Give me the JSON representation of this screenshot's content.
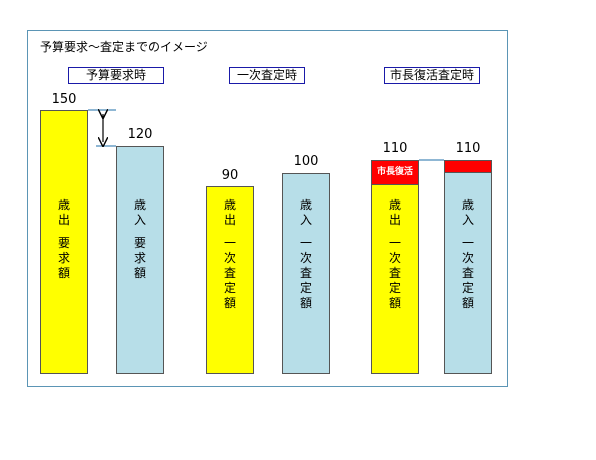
{
  "title": "予算要求～査定までのイメージ",
  "phases": [
    {
      "label": "予算要求時"
    },
    {
      "label": "一次査定時"
    },
    {
      "label": "市長復活査定時"
    }
  ],
  "bars": [
    {
      "value": "150",
      "label_top": "歳出",
      "label_bottom": "要求額",
      "color": "#ffff00"
    },
    {
      "value": "120",
      "label_top": "歳入",
      "label_bottom": "要求額",
      "color": "#b7dee8"
    },
    {
      "value": "90",
      "label_top": "歳出",
      "label_bottom": "一次査定額",
      "color": "#ffff00"
    },
    {
      "value": "100",
      "label_top": "歳入",
      "label_bottom": "一次査定額",
      "color": "#b7dee8"
    },
    {
      "value": "110",
      "label_top": "歳出",
      "label_bottom": "一次査定額",
      "color": "#ffff00",
      "cap_label": "市長復活",
      "cap_color": "#ff0000"
    },
    {
      "value": "110",
      "label_top": "歳入",
      "label_bottom": "一次査定額",
      "color": "#b7dee8",
      "cap_color": "#ff0000"
    }
  ]
}
